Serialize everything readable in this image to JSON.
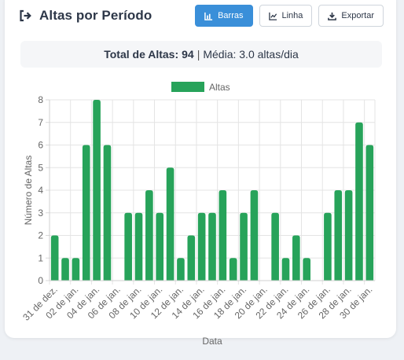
{
  "header": {
    "title": "Altas por Período",
    "title_icon": "sign-out-icon"
  },
  "toolbar": {
    "bars_label": "Barras",
    "line_label": "Linha",
    "export_label": "Exportar",
    "active": "bars"
  },
  "summary": {
    "total_label": "Total de Altas:",
    "total_value": "94",
    "separator": "|",
    "average_text": "Média: 3.0 altas/dia"
  },
  "colors": {
    "bar": "#27a35a",
    "primary": "#3a8fd9"
  },
  "chart_data": {
    "type": "bar",
    "xlabel": "Data",
    "ylabel": "Número de Altas",
    "ylim": [
      0,
      8
    ],
    "yticks": [
      0,
      1,
      2,
      3,
      4,
      5,
      6,
      7,
      8
    ],
    "grid": true,
    "legend_position": "top-center",
    "tick_labels": [
      "31 de dez.",
      "02 de jan.",
      "04 de jan.",
      "06 de jan.",
      "08 de jan.",
      "10 de jan.",
      "12 de jan.",
      "14 de jan.",
      "16 de jan.",
      "18 de jan.",
      "20 de jan.",
      "22 de jan.",
      "24 de jan.",
      "26 de jan.",
      "28 de jan.",
      "30 de jan."
    ],
    "categories": [
      "31 de dez.",
      "01 de jan.",
      "02 de jan.",
      "03 de jan.",
      "04 de jan.",
      "05 de jan.",
      "06 de jan.",
      "07 de jan.",
      "08 de jan.",
      "09 de jan.",
      "10 de jan.",
      "11 de jan.",
      "12 de jan.",
      "13 de jan.",
      "14 de jan.",
      "15 de jan.",
      "16 de jan.",
      "17 de jan.",
      "18 de jan.",
      "19 de jan.",
      "20 de jan.",
      "21 de jan.",
      "22 de jan.",
      "23 de jan.",
      "24 de jan.",
      "25 de jan.",
      "26 de jan.",
      "27 de jan.",
      "28 de jan.",
      "29 de jan.",
      "30 de jan."
    ],
    "series": [
      {
        "name": "Altas",
        "values": [
          2,
          1,
          1,
          6,
          8,
          6,
          0,
          3,
          3,
          4,
          3,
          5,
          1,
          2,
          3,
          3,
          4,
          1,
          3,
          4,
          0,
          3,
          1,
          2,
          1,
          0,
          3,
          4,
          4,
          7,
          6
        ]
      }
    ]
  }
}
